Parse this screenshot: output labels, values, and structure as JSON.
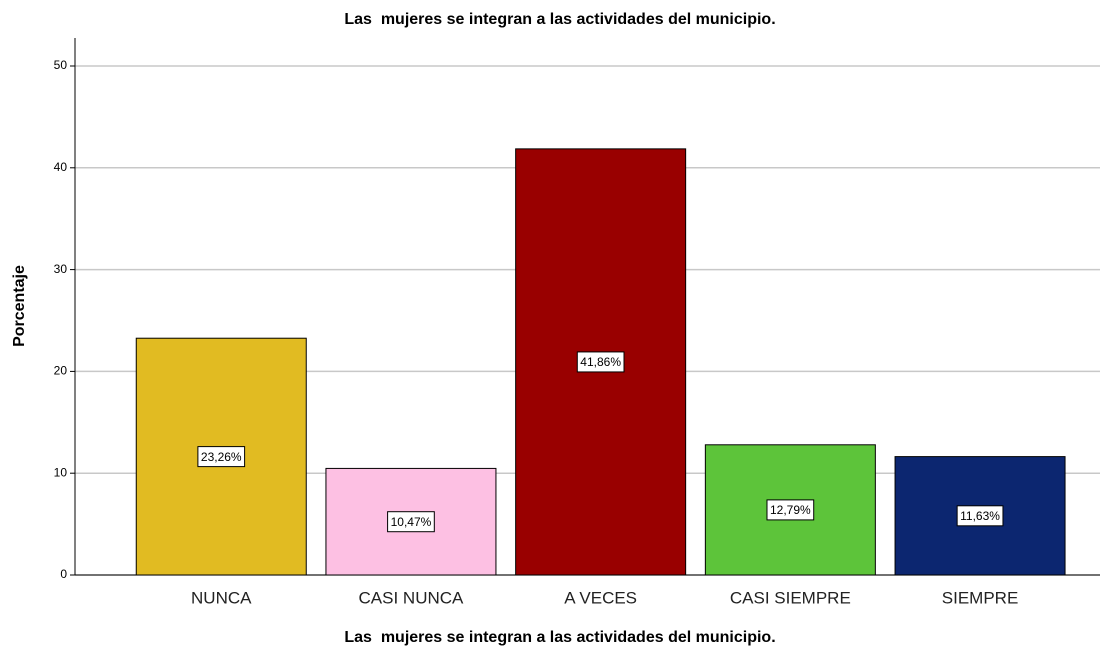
{
  "chart_data": {
    "type": "bar",
    "title": "Las  mujeres se integran a las actividades del municipio.",
    "x_label": "Las  mujeres se integran a las actividades del municipio.",
    "y_label": "Porcentaje",
    "categories": [
      "NUNCA",
      "CASI NUNCA",
      "A VECES",
      "CASI SIEMPRE",
      "SIEMPRE"
    ],
    "values": [
      23.26,
      10.47,
      41.86,
      12.79,
      11.63
    ],
    "value_labels": [
      "23,26%",
      "10,47%",
      "41,86%",
      "12,79%",
      "11,63%"
    ],
    "colors": [
      "#e1bb22",
      "#fdc0e3",
      "#990000",
      "#5dc43a",
      "#0c2670"
    ],
    "ylim": [
      0,
      52.75
    ],
    "yticks": [
      0,
      10,
      20,
      30,
      40,
      50
    ],
    "grid": true
  }
}
